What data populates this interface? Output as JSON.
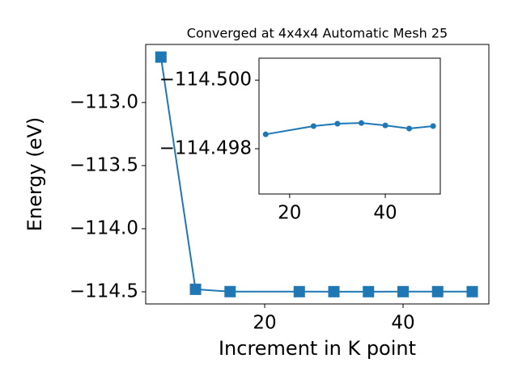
{
  "chart_data": [
    {
      "type": "line",
      "title": "Converged at 4x4x4 Automatic Mesh 25",
      "x_label": "Increment in K point",
      "y_label": "Energy (eV)",
      "marker": "square",
      "series": [
        {
          "color": "#1f77b4",
          "x": [
            5,
            10,
            15,
            25,
            30,
            35,
            40,
            45,
            50
          ],
          "values": [
            -112.64,
            -114.48,
            -114.49842,
            -114.49866,
            -114.49873,
            -114.49875,
            -114.49868,
            -114.49859,
            -114.49866
          ]
        }
      ],
      "xlim": [
        2.8,
        52.4
      ],
      "ylim": [
        -114.596,
        -112.54
      ],
      "xticks": [
        20,
        40
      ],
      "yticks": [
        {
          "value": -113.0,
          "label": "−113.0"
        },
        {
          "value": -113.5,
          "label": "−113.5"
        },
        {
          "value": -114.0,
          "label": "−114.0"
        },
        {
          "value": -114.5,
          "label": "−114.5"
        }
      ]
    },
    {
      "type": "line",
      "marker": "circle",
      "series": [
        {
          "color": "#1f77b4",
          "x": [
            15,
            25,
            30,
            35,
            40,
            45,
            50
          ],
          "values": [
            -114.49842,
            -114.49866,
            -114.49873,
            -114.49875,
            -114.49868,
            -114.49859,
            -114.49866
          ]
        }
      ],
      "xlim": [
        13.6,
        51.5
      ],
      "ylim": [
        -114.49668,
        -114.50064
      ],
      "xticks": [
        20,
        40
      ],
      "yticks": [
        {
          "value": -114.5,
          "label": "−114.500"
        },
        {
          "value": -114.498,
          "label": "−114.498"
        }
      ]
    }
  ]
}
